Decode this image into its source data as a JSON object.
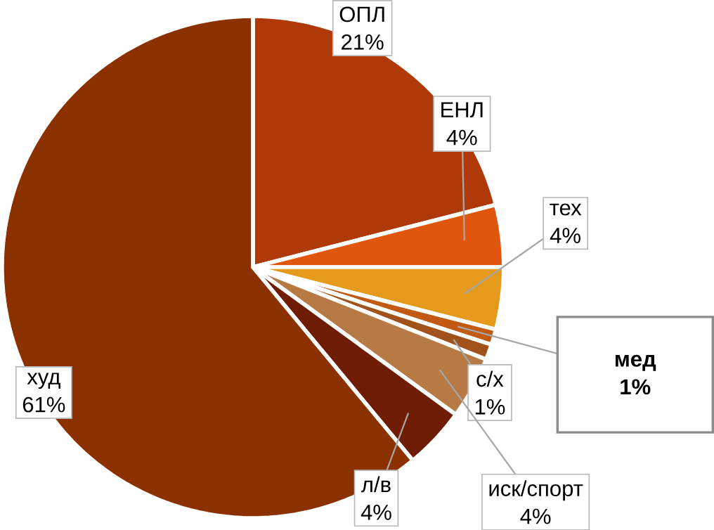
{
  "chart_data": {
    "type": "pie",
    "categories": [
      "ОПЛ",
      "ЕНЛ",
      "тех",
      "мед",
      "с/х",
      "иск/спорт",
      "л/в",
      "худ"
    ],
    "values": [
      21,
      4,
      4,
      1,
      1,
      4,
      4,
      61
    ],
    "value_labels": [
      "21%",
      "4%",
      "4%",
      "1%",
      "1%",
      "4%",
      "4%",
      "61%"
    ],
    "colors": [
      "#b0390a",
      "#e0560c",
      "#e59a1c",
      "#c25a14",
      "#a0521a",
      "#b87a45",
      "#6e1c04",
      "#8b3100"
    ]
  }
}
